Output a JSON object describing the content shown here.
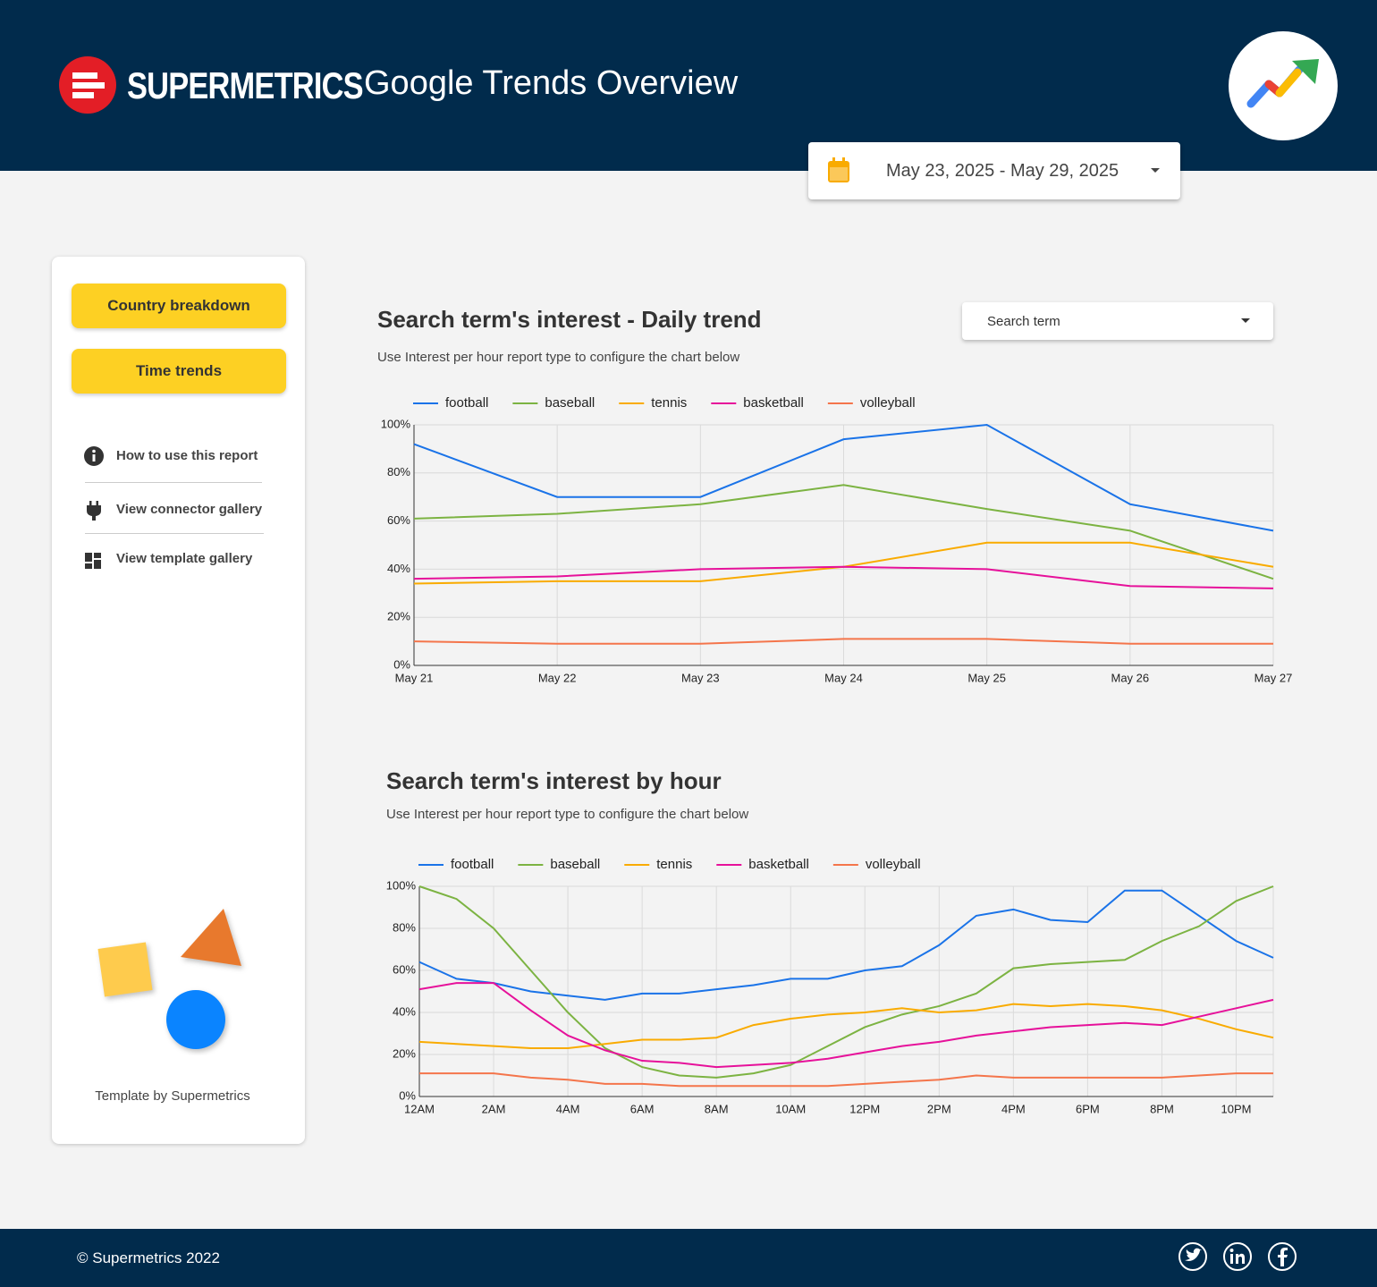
{
  "header": {
    "logo_text": "SUPERMETRICS",
    "title": "Google Trends Overview",
    "date_range": "May 23, 2025 - May 29, 2025"
  },
  "sidebar": {
    "buttons": [
      "Country breakdown",
      "Time trends"
    ],
    "links": [
      "How to use this report",
      "View connector gallery",
      "View template gallery"
    ],
    "credit": "Template by Supermetrics"
  },
  "filter": {
    "label": "Search term"
  },
  "chart_data": [
    {
      "type": "line",
      "title": "Search term's interest - Daily trend",
      "subtitle": "Use Interest per hour report type to configure the chart below",
      "categories": [
        "May 21",
        "May 22",
        "May 23",
        "May 24",
        "May 25",
        "May 26",
        "May 27"
      ],
      "series": [
        {
          "name": "football",
          "color": "#1a73e8",
          "values": [
            92,
            70,
            70,
            94,
            100,
            67,
            56
          ]
        },
        {
          "name": "baseball",
          "color": "#7cb342",
          "values": [
            61,
            63,
            67,
            75,
            65,
            56,
            36
          ]
        },
        {
          "name": "tennis",
          "color": "#f9ab00",
          "values": [
            34,
            35,
            35,
            41,
            51,
            51,
            41
          ]
        },
        {
          "name": "basketball",
          "color": "#e6119a",
          "values": [
            36,
            37,
            40,
            41,
            40,
            33,
            32
          ]
        },
        {
          "name": "volleyball",
          "color": "#f4754b",
          "values": [
            10,
            9,
            9,
            11,
            11,
            9,
            9
          ]
        }
      ],
      "ylim": [
        0,
        100
      ],
      "yticks": [
        {
          "value": 0,
          "label": "0%"
        },
        {
          "value": 20,
          "label": "20%"
        },
        {
          "value": 40,
          "label": "40%"
        },
        {
          "value": 60,
          "label": "60%"
        },
        {
          "value": 80,
          "label": "80%"
        },
        {
          "value": 100,
          "label": "100%"
        }
      ],
      "grid": true,
      "legend": "top-left"
    },
    {
      "type": "line",
      "title": "Search term's interest by hour",
      "subtitle": "Use Interest per hour report type to configure the chart below",
      "categories": [
        "12AM",
        null,
        "2AM",
        null,
        "4AM",
        null,
        "6AM",
        null,
        "8AM",
        null,
        "10AM",
        null,
        "12PM",
        null,
        "2PM",
        null,
        "4PM",
        null,
        "6PM",
        null,
        "8PM",
        null,
        "10PM",
        null
      ],
      "series": [
        {
          "name": "football",
          "color": "#1a73e8",
          "values": [
            64,
            56,
            54,
            50,
            48,
            46,
            49,
            49,
            51,
            53,
            56,
            56,
            60,
            62,
            72,
            86,
            89,
            84,
            83,
            98,
            98,
            86,
            74,
            66
          ]
        },
        {
          "name": "baseball",
          "color": "#7cb342",
          "values": [
            100,
            94,
            80,
            60,
            40,
            23,
            14,
            10,
            9,
            11,
            15,
            24,
            33,
            39,
            43,
            49,
            61,
            63,
            64,
            65,
            74,
            81,
            93,
            100
          ]
        },
        {
          "name": "tennis",
          "color": "#f9ab00",
          "values": [
            26,
            25,
            24,
            23,
            23,
            25,
            27,
            27,
            28,
            34,
            37,
            39,
            40,
            42,
            40,
            41,
            44,
            43,
            44,
            43,
            41,
            37,
            32,
            28
          ]
        },
        {
          "name": "basketball",
          "color": "#e6119a",
          "values": [
            51,
            54,
            54,
            41,
            29,
            22,
            17,
            16,
            14,
            15,
            16,
            18,
            21,
            24,
            26,
            29,
            31,
            33,
            34,
            35,
            34,
            38,
            42,
            46
          ]
        },
        {
          "name": "volleyball",
          "color": "#f4754b",
          "values": [
            11,
            11,
            11,
            9,
            8,
            6,
            6,
            5,
            5,
            5,
            5,
            5,
            6,
            7,
            8,
            10,
            9,
            9,
            9,
            9,
            9,
            10,
            11,
            11
          ]
        }
      ],
      "ylim": [
        0,
        100
      ],
      "yticks": [
        {
          "value": 0,
          "label": "0%"
        },
        {
          "value": 20,
          "label": "20%"
        },
        {
          "value": 40,
          "label": "40%"
        },
        {
          "value": 60,
          "label": "60%"
        },
        {
          "value": 80,
          "label": "80%"
        },
        {
          "value": 100,
          "label": "100%"
        }
      ],
      "grid": true,
      "legend": "top-left"
    }
  ],
  "footer": {
    "copyright": "© Supermetrics 2022"
  }
}
